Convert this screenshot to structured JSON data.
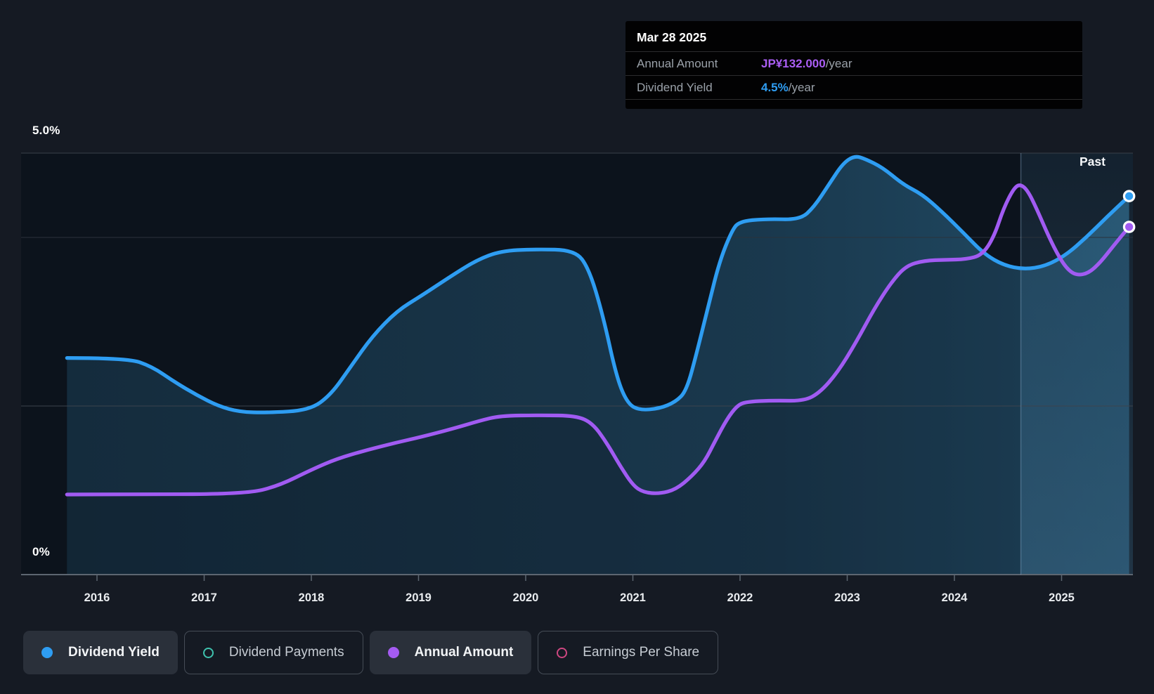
{
  "window_title": "Dividend history chart",
  "colors": {
    "page_bg": "#151a23",
    "plot_bg": "#0c131c",
    "yield_blue": "#2e9df2",
    "amount_purple": "#a15bf2",
    "payments_teal": "#3fc2ae",
    "eps_pink": "#ce4781",
    "grid_major": "#394049",
    "grid_mid": "#2b323c",
    "grid_low": "#3c434d",
    "axis_line": "#5d6671",
    "tooltip_bg": "#020203",
    "tooltip_label_gray": "#9aa1a9"
  },
  "tooltip": {
    "date": "Mar 28 2025",
    "rows": [
      {
        "label": "Annual Amount",
        "value": "JP¥132.000",
        "suffix": "/year",
        "color": "#ab5ef6"
      },
      {
        "label": "Dividend Yield",
        "value": "4.5%",
        "suffix": "/year",
        "color": "#2f9df2"
      }
    ]
  },
  "past_label": "Past",
  "axis": {
    "y_top_label": "5.0%",
    "y_bottom_label": "0%",
    "years": [
      "2016",
      "2017",
      "2018",
      "2019",
      "2020",
      "2021",
      "2022",
      "2023",
      "2024",
      "2025"
    ]
  },
  "legend": [
    {
      "label": "Dividend Yield",
      "active": true,
      "color": "#2e9df2"
    },
    {
      "label": "Dividend Payments",
      "active": false,
      "color": "#3fc2ae"
    },
    {
      "label": "Annual Amount",
      "active": true,
      "color": "#a55bf2"
    },
    {
      "label": "Earnings Per Share",
      "active": false,
      "color": "#ce4781"
    }
  ],
  "chart_data": {
    "type": "line",
    "title": "Dividend yield and annual dividend amount history",
    "x_axis": {
      "ticks": [
        2016,
        2017,
        2018,
        2019,
        2020,
        2021,
        2022,
        2023,
        2024,
        2025
      ]
    },
    "y_axis": {
      "unit": "%",
      "labeled_ticks": [
        {
          "value": 5.0,
          "label": "5.0%"
        },
        {
          "value": 0,
          "label": "0%"
        }
      ],
      "gridline_values_pct": [
        5.0,
        4.0,
        2.0
      ],
      "range_pct": [
        0,
        5.5
      ]
    },
    "annotations": {
      "past_divider_year": 2024.62,
      "past_label": "Past"
    },
    "tooltip_point": {
      "date": "Mar 28 2025",
      "annual_amount": "JP¥132.000/year",
      "dividend_yield": "4.5%/year"
    },
    "series": [
      {
        "name": "Dividend Yield",
        "unit": "%",
        "color": "#2e9df2",
        "visible": true,
        "end_marker": true,
        "points": [
          [
            2015.72,
            2.57
          ],
          [
            2016.28,
            2.57
          ],
          [
            2016.51,
            2.47
          ],
          [
            2016.73,
            2.28
          ],
          [
            2016.93,
            2.13
          ],
          [
            2017.13,
            2.0
          ],
          [
            2017.33,
            1.93
          ],
          [
            2017.59,
            1.92
          ],
          [
            2017.98,
            1.95
          ],
          [
            2018.18,
            2.13
          ],
          [
            2018.37,
            2.47
          ],
          [
            2018.57,
            2.83
          ],
          [
            2018.8,
            3.13
          ],
          [
            2019.03,
            3.31
          ],
          [
            2019.29,
            3.53
          ],
          [
            2019.54,
            3.73
          ],
          [
            2019.77,
            3.84
          ],
          [
            2020.08,
            3.86
          ],
          [
            2020.46,
            3.85
          ],
          [
            2020.59,
            3.63
          ],
          [
            2020.72,
            3.08
          ],
          [
            2020.85,
            2.33
          ],
          [
            2020.95,
            2.03
          ],
          [
            2021.06,
            1.95
          ],
          [
            2021.25,
            1.97
          ],
          [
            2021.4,
            2.05
          ],
          [
            2021.5,
            2.18
          ],
          [
            2021.6,
            2.65
          ],
          [
            2021.71,
            3.22
          ],
          [
            2021.81,
            3.72
          ],
          [
            2021.92,
            4.07
          ],
          [
            2021.99,
            4.19
          ],
          [
            2022.24,
            4.22
          ],
          [
            2022.56,
            4.21
          ],
          [
            2022.69,
            4.36
          ],
          [
            2022.83,
            4.63
          ],
          [
            2022.96,
            4.88
          ],
          [
            2023.07,
            4.97
          ],
          [
            2023.17,
            4.93
          ],
          [
            2023.33,
            4.83
          ],
          [
            2023.52,
            4.63
          ],
          [
            2023.7,
            4.51
          ],
          [
            2023.88,
            4.31
          ],
          [
            2024.08,
            4.06
          ],
          [
            2024.28,
            3.8
          ],
          [
            2024.46,
            3.67
          ],
          [
            2024.65,
            3.62
          ],
          [
            2024.85,
            3.66
          ],
          [
            2025.04,
            3.79
          ],
          [
            2025.23,
            4.0
          ],
          [
            2025.42,
            4.24
          ],
          [
            2025.63,
            4.49
          ]
        ]
      },
      {
        "name": "Annual Amount",
        "unit": "JP¥/year",
        "color": "#a15bf2",
        "visible": true,
        "end_marker": true,
        "points": [
          [
            2015.72,
            30.4
          ],
          [
            2016.41,
            30.4
          ],
          [
            2017.39,
            30.7
          ],
          [
            2017.69,
            33.6
          ],
          [
            2018.01,
            40.0
          ],
          [
            2018.24,
            44.0
          ],
          [
            2018.51,
            47.2
          ],
          [
            2018.77,
            49.9
          ],
          [
            2019.03,
            52.3
          ],
          [
            2019.33,
            55.5
          ],
          [
            2019.57,
            58.4
          ],
          [
            2019.76,
            60.3
          ],
          [
            2020.14,
            60.5
          ],
          [
            2020.47,
            60.3
          ],
          [
            2020.62,
            57.6
          ],
          [
            2020.75,
            50.4
          ],
          [
            2020.88,
            41.3
          ],
          [
            2021.0,
            33.9
          ],
          [
            2021.1,
            31.2
          ],
          [
            2021.25,
            30.7
          ],
          [
            2021.4,
            32.3
          ],
          [
            2021.55,
            37.3
          ],
          [
            2021.67,
            42.9
          ],
          [
            2021.77,
            50.9
          ],
          [
            2021.88,
            59.2
          ],
          [
            2021.97,
            64.0
          ],
          [
            2022.05,
            65.6
          ],
          [
            2022.31,
            66.1
          ],
          [
            2022.6,
            65.9
          ],
          [
            2022.75,
            69.3
          ],
          [
            2022.91,
            76.8
          ],
          [
            2023.08,
            88.0
          ],
          [
            2023.25,
            100.8
          ],
          [
            2023.41,
            110.9
          ],
          [
            2023.55,
            117.3
          ],
          [
            2023.72,
            119.2
          ],
          [
            2023.92,
            119.5
          ],
          [
            2024.11,
            119.7
          ],
          [
            2024.26,
            121.3
          ],
          [
            2024.37,
            128.3
          ],
          [
            2024.46,
            139.2
          ],
          [
            2024.55,
            146.4
          ],
          [
            2024.61,
            148.3
          ],
          [
            2024.68,
            146.1
          ],
          [
            2024.77,
            138.7
          ],
          [
            2024.88,
            128.3
          ],
          [
            2024.98,
            120.3
          ],
          [
            2025.06,
            115.7
          ],
          [
            2025.14,
            113.6
          ],
          [
            2025.25,
            114.4
          ],
          [
            2025.36,
            118.4
          ],
          [
            2025.49,
            125.1
          ],
          [
            2025.63,
            132.0
          ]
        ]
      },
      {
        "name": "Dividend Payments",
        "color": "#3fc2ae",
        "visible": false,
        "points": []
      },
      {
        "name": "Earnings Per Share",
        "color": "#ce4781",
        "visible": false,
        "points": []
      }
    ]
  }
}
